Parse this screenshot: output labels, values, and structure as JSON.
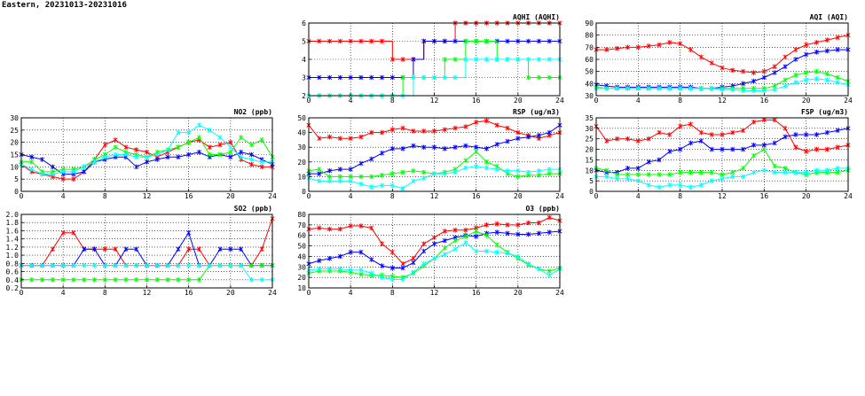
{
  "page": {
    "title": "Eastern, 20231013-20231016"
  },
  "colors": {
    "red": "#ff0000",
    "blue": "#0000ff",
    "green": "#00ff00",
    "cyan": "#00ffff",
    "grid": "#000000"
  },
  "chart_data": [
    {
      "id": "aqhi",
      "type": "line",
      "title": "AQHI (AQHI)",
      "xlim": [
        0,
        24
      ],
      "xticks": [
        0,
        4,
        8,
        12,
        16,
        20,
        24
      ],
      "ylim": [
        2,
        6
      ],
      "yticks": [
        2,
        3,
        4,
        5,
        6
      ],
      "grid": true,
      "step": true,
      "x": [
        0,
        1,
        2,
        3,
        4,
        5,
        6,
        7,
        8,
        9,
        10,
        11,
        12,
        13,
        14,
        15,
        16,
        17,
        18,
        19,
        20,
        21,
        22,
        23,
        24
      ],
      "series": [
        {
          "color": "red",
          "values": [
            5,
            5,
            5,
            5,
            5,
            5,
            5,
            5,
            4,
            4,
            4,
            5,
            5,
            5,
            6,
            6,
            6,
            6,
            6,
            6,
            6,
            6,
            6,
            6,
            6
          ]
        },
        {
          "color": "blue",
          "values": [
            3,
            3,
            3,
            3,
            3,
            3,
            3,
            3,
            3,
            3,
            4,
            5,
            5,
            5,
            5,
            5,
            5,
            5,
            5,
            5,
            5,
            5,
            5,
            5,
            5
          ]
        },
        {
          "color": "green",
          "values": [
            2,
            2,
            2,
            2,
            2,
            2,
            2,
            2,
            2,
            3,
            3,
            3,
            3,
            4,
            4,
            5,
            5,
            5,
            4,
            4,
            4,
            3,
            3,
            3,
            3
          ]
        },
        {
          "color": "cyan",
          "values": [
            2,
            2,
            2,
            2,
            2,
            2,
            2,
            2,
            2,
            2,
            3,
            3,
            3,
            3,
            3,
            4,
            4,
            4,
            4,
            4,
            4,
            4,
            4,
            4,
            4
          ]
        }
      ]
    },
    {
      "id": "aqi",
      "type": "line",
      "title": "AQI (AQI)",
      "xlim": [
        0,
        24
      ],
      "xticks": [
        0,
        4,
        8,
        12,
        16,
        20,
        24
      ],
      "ylim": [
        30,
        90
      ],
      "yticks": [
        30,
        40,
        50,
        60,
        70,
        80,
        90
      ],
      "grid": true,
      "x": [
        0,
        1,
        2,
        3,
        4,
        5,
        6,
        7,
        8,
        9,
        10,
        11,
        12,
        13,
        14,
        15,
        16,
        17,
        18,
        19,
        20,
        21,
        22,
        23,
        24
      ],
      "series": [
        {
          "color": "red",
          "values": [
            68,
            68,
            69,
            70,
            70,
            71,
            72,
            74,
            73,
            68,
            62,
            57,
            53,
            51,
            50,
            49,
            50,
            54,
            62,
            68,
            72,
            74,
            76,
            78,
            80
          ]
        },
        {
          "color": "blue",
          "values": [
            39,
            38,
            37,
            37,
            37,
            37,
            37,
            37,
            37,
            37,
            36,
            36,
            37,
            38,
            40,
            42,
            45,
            49,
            54,
            60,
            64,
            66,
            67,
            68,
            68
          ]
        },
        {
          "color": "green",
          "values": [
            37,
            36,
            36,
            36,
            36,
            36,
            36,
            36,
            36,
            36,
            36,
            36,
            36,
            36,
            36,
            36,
            36,
            38,
            43,
            47,
            49,
            50,
            48,
            45,
            42
          ]
        },
        {
          "color": "cyan",
          "values": [
            36,
            36,
            36,
            36,
            36,
            36,
            36,
            36,
            36,
            36,
            36,
            36,
            35,
            35,
            34,
            34,
            34,
            35,
            38,
            41,
            43,
            44,
            43,
            41,
            39
          ]
        }
      ]
    },
    {
      "id": "no2",
      "type": "line",
      "title": "NO2 (ppb)",
      "xlim": [
        0,
        24
      ],
      "xticks": [
        0,
        4,
        8,
        12,
        16,
        20,
        24
      ],
      "ylim": [
        0,
        30
      ],
      "yticks": [
        0,
        5,
        10,
        15,
        20,
        25,
        30
      ],
      "grid": true,
      "x": [
        0,
        1,
        2,
        3,
        4,
        5,
        6,
        7,
        8,
        9,
        10,
        11,
        12,
        13,
        14,
        15,
        16,
        17,
        18,
        19,
        20,
        21,
        22,
        23,
        24
      ],
      "series": [
        {
          "color": "red",
          "values": [
            11,
            8,
            7,
            6,
            5,
            5,
            8,
            13,
            19,
            21,
            18,
            17,
            16,
            14,
            16,
            18,
            20,
            21,
            18,
            19,
            20,
            13,
            11,
            10,
            10
          ]
        },
        {
          "color": "blue",
          "values": [
            15,
            14,
            13,
            10,
            7,
            7,
            8,
            12,
            13,
            14,
            14,
            10,
            12,
            13,
            14,
            14,
            15,
            16,
            14,
            15,
            14,
            16,
            15,
            13,
            11
          ]
        },
        {
          "color": "green",
          "values": [
            12,
            12,
            8,
            8,
            9,
            9,
            10,
            13,
            15,
            18,
            16,
            15,
            14,
            16,
            17,
            18,
            20,
            22,
            15,
            15,
            16,
            22,
            19,
            21,
            14
          ]
        },
        {
          "color": "cyan",
          "values": [
            11,
            9,
            7,
            7,
            8,
            8,
            10,
            12,
            14,
            15,
            15,
            14,
            14,
            15,
            17,
            24,
            24,
            27,
            25,
            22,
            18,
            14,
            13,
            12,
            12
          ]
        }
      ]
    },
    {
      "id": "rsp",
      "type": "line",
      "title": "RSP (ug/m3)",
      "xlim": [
        0,
        24
      ],
      "xticks": [
        0,
        4,
        8,
        12,
        16,
        20,
        24
      ],
      "ylim": [
        0,
        50
      ],
      "yticks": [
        0,
        10,
        20,
        30,
        40,
        50
      ],
      "grid": true,
      "x": [
        0,
        1,
        2,
        3,
        4,
        5,
        6,
        7,
        8,
        9,
        10,
        11,
        12,
        13,
        14,
        15,
        16,
        17,
        18,
        19,
        20,
        21,
        22,
        23,
        24
      ],
      "series": [
        {
          "color": "red",
          "values": [
            45,
            36,
            37,
            36,
            36,
            37,
            40,
            40,
            42,
            43,
            41,
            41,
            41,
            42,
            43,
            44,
            47,
            48,
            45,
            43,
            40,
            38,
            36,
            38,
            40
          ]
        },
        {
          "color": "blue",
          "values": [
            12,
            12,
            14,
            15,
            15,
            19,
            22,
            26,
            29,
            29,
            31,
            30,
            30,
            29,
            30,
            31,
            30,
            29,
            32,
            34,
            36,
            37,
            38,
            40,
            45
          ]
        },
        {
          "color": "green",
          "values": [
            14,
            15,
            10,
            10,
            10,
            10,
            10,
            11,
            12,
            13,
            14,
            13,
            12,
            13,
            15,
            21,
            27,
            20,
            17,
            12,
            10,
            11,
            11,
            12,
            12
          ]
        },
        {
          "color": "cyan",
          "values": [
            9,
            7,
            7,
            7,
            7,
            5,
            3,
            4,
            4,
            2,
            7,
            9,
            12,
            12,
            13,
            16,
            17,
            16,
            15,
            14,
            14,
            13,
            14,
            15,
            15
          ]
        }
      ]
    },
    {
      "id": "fsp",
      "type": "line",
      "title": "FSP (ug/m3)",
      "xlim": [
        0,
        24
      ],
      "xticks": [
        0,
        4,
        8,
        12,
        16,
        20,
        24
      ],
      "ylim": [
        0,
        35
      ],
      "yticks": [
        0,
        5,
        10,
        15,
        20,
        25,
        30,
        35
      ],
      "grid": true,
      "x": [
        0,
        1,
        2,
        3,
        4,
        5,
        6,
        7,
        8,
        9,
        10,
        11,
        12,
        13,
        14,
        15,
        16,
        17,
        18,
        19,
        20,
        21,
        22,
        23,
        24
      ],
      "series": [
        {
          "color": "red",
          "values": [
            31,
            24,
            25,
            25,
            24,
            25,
            28,
            27,
            31,
            32,
            28,
            27,
            27,
            28,
            29,
            33,
            34,
            34,
            30,
            21,
            19,
            20,
            20,
            21,
            22
          ]
        },
        {
          "color": "blue",
          "values": [
            10,
            9,
            9,
            11,
            11,
            14,
            15,
            19,
            20,
            23,
            24,
            20,
            20,
            20,
            20,
            22,
            22,
            23,
            26,
            27,
            27,
            27,
            28,
            29,
            30
          ]
        },
        {
          "color": "green",
          "values": [
            11,
            10,
            8,
            8,
            8,
            8,
            8,
            8,
            9,
            9,
            9,
            9,
            8,
            9,
            11,
            17,
            20,
            12,
            11,
            9,
            8,
            9,
            9,
            9,
            10
          ]
        },
        {
          "color": "cyan",
          "values": [
            7,
            7,
            6,
            6,
            5,
            3,
            2,
            3,
            3,
            2,
            3,
            5,
            6,
            7,
            7,
            9,
            10,
            9,
            9,
            9,
            9,
            10,
            10,
            11,
            11
          ]
        }
      ]
    },
    {
      "id": "so2",
      "type": "line",
      "title": "SO2 (ppb)",
      "xlim": [
        0,
        24
      ],
      "xticks": [
        0,
        4,
        8,
        12,
        16,
        20,
        24
      ],
      "ylim": [
        0.2,
        2.0
      ],
      "yticks": [
        0.2,
        0.4,
        0.6,
        0.8,
        1.0,
        1.2,
        1.4,
        1.6,
        1.8,
        2.0
      ],
      "grid": true,
      "x": [
        0,
        1,
        2,
        3,
        4,
        5,
        6,
        7,
        8,
        9,
        10,
        11,
        12,
        13,
        14,
        15,
        16,
        17,
        18,
        19,
        20,
        21,
        22,
        23,
        24
      ],
      "series": [
        {
          "color": "red",
          "values": [
            0.75,
            0.75,
            0.75,
            1.15,
            1.55,
            1.55,
            1.15,
            1.15,
            1.15,
            1.15,
            0.75,
            0.75,
            0.75,
            0.75,
            0.75,
            0.75,
            1.15,
            1.15,
            0.75,
            0.75,
            0.75,
            0.75,
            0.75,
            1.15,
            1.9
          ]
        },
        {
          "color": "blue",
          "values": [
            0.75,
            0.75,
            0.75,
            0.75,
            0.75,
            0.75,
            1.15,
            1.15,
            0.75,
            0.75,
            1.15,
            1.15,
            0.75,
            0.75,
            0.75,
            1.15,
            1.55,
            0.75,
            0.75,
            1.15,
            1.15,
            1.15,
            0.75,
            0.75,
            0.75
          ]
        },
        {
          "color": "green",
          "values": [
            0.4,
            0.4,
            0.4,
            0.4,
            0.4,
            0.4,
            0.4,
            0.4,
            0.4,
            0.4,
            0.4,
            0.4,
            0.4,
            0.4,
            0.4,
            0.4,
            0.4,
            0.4,
            0.75,
            0.75,
            0.75,
            0.75,
            0.75,
            0.75,
            0.75
          ]
        },
        {
          "color": "cyan",
          "values": [
            0.75,
            0.75,
            0.75,
            0.75,
            0.75,
            0.75,
            0.75,
            0.75,
            0.75,
            0.75,
            0.75,
            0.75,
            0.75,
            0.75,
            0.75,
            0.75,
            0.75,
            0.75,
            0.75,
            0.75,
            0.75,
            0.75,
            0.4,
            0.4,
            0.4
          ]
        }
      ]
    },
    {
      "id": "o3",
      "type": "line",
      "title": "O3 (ppb)",
      "xlim": [
        0,
        24
      ],
      "xticks": [
        0,
        4,
        8,
        12,
        16,
        20,
        24
      ],
      "ylim": [
        10,
        80
      ],
      "yticks": [
        10,
        20,
        30,
        40,
        50,
        60,
        70,
        80
      ],
      "grid": true,
      "x": [
        0,
        1,
        2,
        3,
        4,
        5,
        6,
        7,
        8,
        9,
        10,
        11,
        12,
        13,
        14,
        15,
        16,
        17,
        18,
        19,
        20,
        21,
        22,
        23,
        24
      ],
      "series": [
        {
          "color": "red",
          "values": [
            66,
            67,
            66,
            66,
            69,
            69,
            67,
            52,
            44,
            33,
            38,
            52,
            58,
            64,
            65,
            65,
            67,
            70,
            71,
            70,
            70,
            72,
            72,
            77,
            74
          ]
        },
        {
          "color": "blue",
          "values": [
            33,
            36,
            38,
            40,
            44,
            44,
            37,
            31,
            29,
            29,
            34,
            45,
            52,
            55,
            58,
            60,
            59,
            62,
            63,
            62,
            61,
            61,
            62,
            63,
            64
          ]
        },
        {
          "color": "green",
          "values": [
            24,
            26,
            26,
            26,
            25,
            23,
            22,
            22,
            21,
            20,
            24,
            31,
            38,
            48,
            55,
            59,
            64,
            60,
            51,
            44,
            38,
            32,
            28,
            26,
            29
          ]
        },
        {
          "color": "cyan",
          "values": [
            27,
            28,
            28,
            28,
            27,
            27,
            24,
            20,
            18,
            18,
            25,
            33,
            38,
            42,
            47,
            53,
            45,
            45,
            44,
            43,
            40,
            33,
            28,
            22,
            28
          ]
        }
      ]
    }
  ]
}
